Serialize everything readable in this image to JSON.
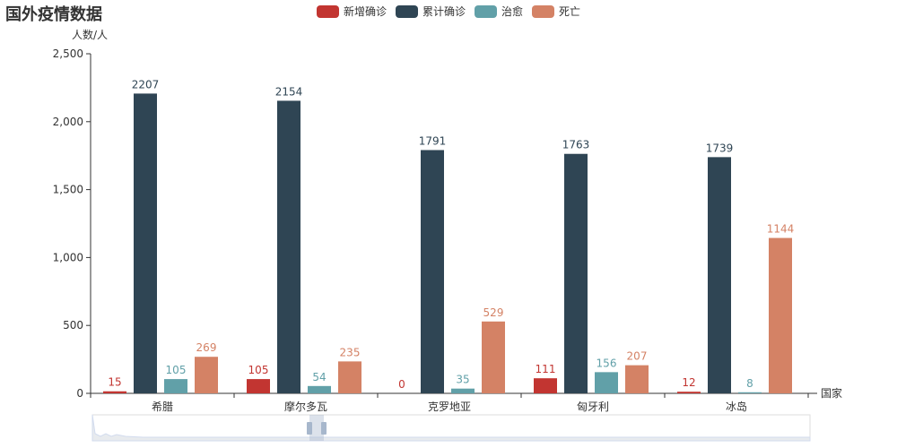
{
  "title": "国外疫情数据",
  "chart_data": {
    "type": "bar",
    "title": "国外疫情数据",
    "xlabel": "国家",
    "ylabel": "人数/人",
    "ylim": [
      0,
      2500
    ],
    "yticks": [
      "0",
      "500",
      "1,000",
      "1,500",
      "2,000",
      "2,500"
    ],
    "categories": [
      "希腊",
      "摩尔多瓦",
      "克罗地亚",
      "匈牙利",
      "冰岛"
    ],
    "series": [
      {
        "name": "新增确诊",
        "color": "#c23531",
        "values": [
          15,
          105,
          0,
          111,
          12
        ]
      },
      {
        "name": "累计确诊",
        "color": "#2f4554",
        "values": [
          2207,
          2154,
          1791,
          1763,
          1739
        ]
      },
      {
        "name": "治愈",
        "color": "#61a0a8",
        "values": [
          105,
          54,
          35,
          156,
          8
        ]
      },
      {
        "name": "死亡",
        "color": "#d48265",
        "values": [
          269,
          235,
          529,
          207,
          1144
        ]
      }
    ],
    "legend_position": "top",
    "datazoom": {
      "start_percent": 30,
      "end_percent": 32
    }
  }
}
